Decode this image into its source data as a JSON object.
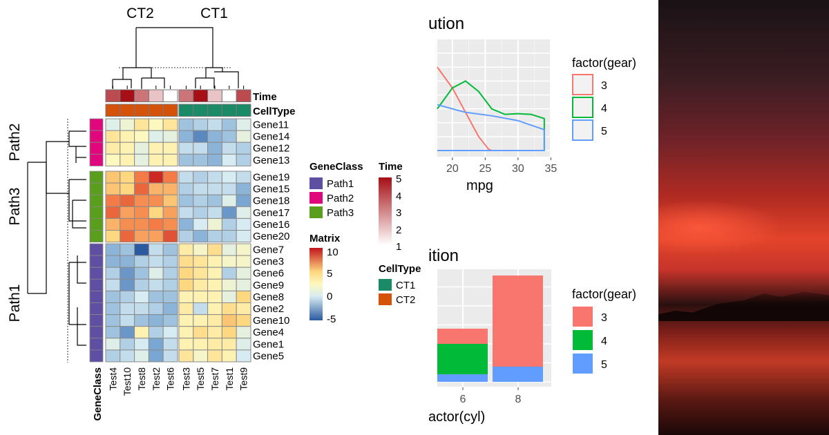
{
  "chart_data": [
    {
      "type": "heatmap",
      "column_groups": [
        {
          "label": "CT2",
          "columns": [
            "Test4",
            "Test10",
            "Test8",
            "Test2",
            "Test6"
          ]
        },
        {
          "label": "CT1",
          "columns": [
            "Test3",
            "Test5",
            "Test7",
            "Test1",
            "Test9"
          ]
        }
      ],
      "row_groups": [
        {
          "label": "Path2",
          "rows": [
            "Gene11",
            "Gene14",
            "Gene12",
            "Gene13"
          ]
        },
        {
          "label": "Path3",
          "rows": [
            "Gene19",
            "Gene15",
            "Gene18",
            "Gene17",
            "Gene16",
            "Gene20"
          ]
        },
        {
          "label": "Path1",
          "rows": [
            "Gene7",
            "Gene3",
            "Gene6",
            "Gene9",
            "Gene8",
            "Gene2",
            "Gene10",
            "Gene4",
            "Gene1",
            "Gene5"
          ]
        }
      ],
      "values": {
        "Gene11": [
          0.5,
          1.5,
          4,
          2.5,
          4,
          -1.5,
          -1,
          -0.5,
          -1.5,
          0.5
        ],
        "Gene14": [
          4,
          3,
          2.5,
          0.5,
          1,
          -2,
          -3.5,
          -2,
          -1.5,
          1
        ],
        "Gene12": [
          3.5,
          3,
          1,
          3,
          3,
          -0.5,
          -0.5,
          -2,
          -0.5,
          -1
        ],
        "Gene13": [
          2.5,
          3,
          1,
          3,
          3,
          -1.5,
          -1.5,
          -2,
          0,
          -1
        ],
        "Gene19": [
          5.5,
          5,
          7.5,
          9.5,
          7.5,
          -0.5,
          -1,
          -0.5,
          0,
          -0.5
        ],
        "Gene15": [
          5.5,
          5,
          8,
          6,
          6,
          -1,
          -0.5,
          -0.5,
          -0.5,
          -2
        ],
        "Gene18": [
          7.5,
          8,
          7,
          7,
          5.5,
          -1.5,
          -1,
          -1.5,
          0.5,
          -2.5
        ],
        "Gene17": [
          8,
          6.5,
          7,
          5,
          6.5,
          -0.5,
          -1,
          -0.5,
          -3,
          0.5
        ],
        "Gene16": [
          6,
          7,
          7,
          7.5,
          7,
          -2,
          0,
          1.5,
          -1,
          0
        ],
        "Gene20": [
          5,
          8,
          6.5,
          6.5,
          8.5,
          -1,
          -2,
          -1,
          -1,
          0
        ],
        "Gene7": [
          -2,
          -1.5,
          -5,
          -0.5,
          -1.5,
          3.5,
          2,
          4.5,
          1,
          2
        ],
        "Gene3": [
          -2,
          -2,
          -1,
          -0.5,
          -1,
          4.5,
          4,
          3,
          2,
          2
        ],
        "Gene6": [
          -1,
          -3,
          -1.5,
          0.5,
          -1,
          5,
          4,
          3,
          -1,
          1
        ],
        "Gene9": [
          -0.5,
          -3,
          -1,
          -0.5,
          -1,
          5,
          3.5,
          3,
          1.5,
          1
        ],
        "Gene8": [
          -1.5,
          -1,
          0,
          -1.5,
          -1.5,
          3,
          3,
          3,
          1,
          5
        ],
        "Gene2": [
          -1.5,
          -0.5,
          -0.5,
          -1,
          -2,
          3.5,
          -0.5,
          3,
          4.5,
          3.5
        ],
        "Gene10": [
          -1.5,
          -0.5,
          -1.5,
          -2,
          -1.5,
          3,
          3,
          3.5,
          5.5,
          5
        ],
        "Gene4": [
          -1.5,
          -3,
          3,
          -1,
          0,
          3,
          4.5,
          3.5,
          5,
          1
        ],
        "Gene1": [
          0.5,
          -1,
          0,
          -2.5,
          -0.5,
          3,
          3,
          3.5,
          3.5,
          0.5
        ],
        "Gene5": [
          -1,
          -0.5,
          0.5,
          -2.5,
          -0.5,
          4,
          2,
          4,
          3,
          0
        ]
      },
      "time": {
        "Test4": 4,
        "Test10": 5,
        "Test8": 3.3,
        "Test2": 2,
        "Test6": 1,
        "Test3": 3.3,
        "Test5": 5,
        "Test7": 2,
        "Test1": 1,
        "Test9": 4
      },
      "annotation_labels": {
        "time": "Time",
        "celltype": "CellType",
        "geneclass": "GeneClass"
      },
      "legends": {
        "geneclass": {
          "title": "GeneClass",
          "items": [
            {
              "label": "Path1",
              "color": "#5e4fa2"
            },
            {
              "label": "Path2",
              "color": "#e0077d"
            },
            {
              "label": "Path3",
              "color": "#5a9e1e"
            }
          ]
        },
        "time": {
          "title": "Time",
          "ticks": [
            "5",
            "4",
            "3",
            "2",
            "1"
          ],
          "range": [
            1,
            5
          ],
          "colors": [
            "#ffffff",
            "#a50f15"
          ]
        },
        "matrix": {
          "title": "Matrix",
          "ticks": [
            "10",
            "5",
            "0",
            "-5"
          ],
          "range": [
            -5,
            10
          ]
        },
        "celltype": {
          "title": "CellType",
          "items": [
            {
              "label": "CT1",
              "color": "#1b8a67"
            },
            {
              "label": "CT2",
              "color": "#d4520a"
            }
          ]
        }
      }
    },
    {
      "type": "line",
      "title": "ution",
      "xlabel": "mpg",
      "xticks": [
        "20",
        "25",
        "30",
        "35"
      ],
      "xlim": [
        17.7,
        35
      ],
      "ylim": [
        0,
        0.16
      ],
      "grid": true,
      "legend": {
        "title": "factor(gear)",
        "position": "right"
      },
      "series": [
        {
          "name": "3",
          "color": "#f8766d",
          "x": [
            17.7,
            20,
            22,
            24,
            25.5,
            26
          ],
          "y": [
            0.12,
            0.09,
            0.055,
            0.02,
            0.002,
            0
          ]
        },
        {
          "name": "4",
          "color": "#00ba38",
          "x": [
            17.7,
            20,
            22,
            24,
            26,
            28,
            30,
            32,
            34,
            34
          ],
          "y": [
            0.06,
            0.09,
            0.1,
            0.085,
            0.06,
            0.052,
            0.053,
            0.052,
            0.046,
            0
          ]
        },
        {
          "name": "5",
          "color": "#619cff",
          "x": [
            17.7,
            20,
            22,
            26,
            30,
            34,
            34,
            17.7
          ],
          "y": [
            0.066,
            0.06,
            0.055,
            0.05,
            0.043,
            0.03,
            0,
            0
          ]
        }
      ]
    },
    {
      "type": "bar",
      "stacked": true,
      "title": "ition",
      "xlabel": "actor(cyl)",
      "categories": [
        "6",
        "8"
      ],
      "ylim": [
        0,
        15
      ],
      "grid": true,
      "legend": {
        "title": "factor(gear)",
        "position": "right"
      },
      "series": [
        {
          "name": "3",
          "color": "#f8766d",
          "values": [
            2,
            12
          ]
        },
        {
          "name": "4",
          "color": "#00ba38",
          "values": [
            4,
            0
          ]
        },
        {
          "name": "5",
          "color": "#619cff",
          "values": [
            1,
            2
          ]
        }
      ]
    }
  ]
}
